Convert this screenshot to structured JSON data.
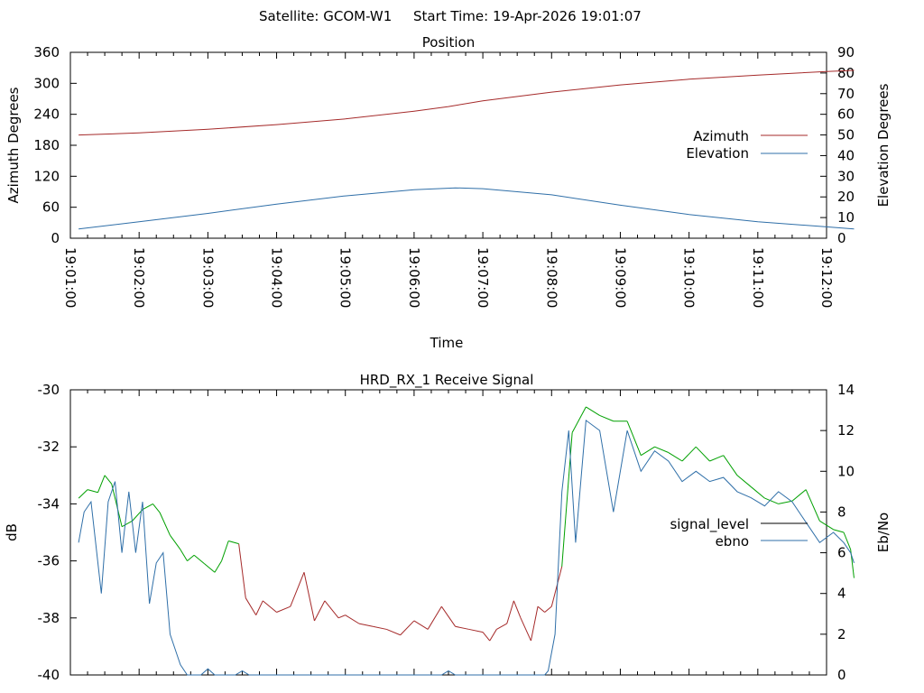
{
  "header": {
    "satellite": "Satellite: GCOM-W1",
    "start_time": "Start Time: 19-Apr-2026 19:01:07"
  },
  "chart_data": [
    {
      "type": "line",
      "title": "Position",
      "xlabel": "Time",
      "ylabel": "Azimuth Degrees",
      "y2label": "Elevation Degrees",
      "xlim_minutes": [
        0,
        11
      ],
      "x_tick_labels": [
        "19:01:00",
        "19:02:00",
        "19:03:00",
        "19:04:00",
        "19:05:00",
        "19:06:00",
        "19:07:00",
        "19:08:00",
        "19:09:00",
        "19:10:00",
        "19:11:00",
        "19:12:00"
      ],
      "ylim": [
        0,
        360
      ],
      "y_ticks": [
        0,
        60,
        120,
        180,
        240,
        300,
        360
      ],
      "y2lim": [
        0,
        90
      ],
      "y2_ticks": [
        0,
        10,
        20,
        30,
        40,
        50,
        60,
        70,
        80,
        90
      ],
      "legend_position": "right",
      "series": [
        {
          "name": "Azimuth",
          "axis": "left",
          "color": "#a52a2a",
          "x": [
            0.12,
            1,
            2,
            3,
            4,
            5,
            5.5,
            6,
            7,
            8,
            9,
            10,
            11,
            11.4
          ],
          "y": [
            200,
            204,
            211,
            220,
            231,
            246,
            255,
            266,
            283,
            297,
            308,
            316,
            323,
            325
          ]
        },
        {
          "name": "Elevation",
          "axis": "right",
          "color": "#2f6fa8",
          "x": [
            0.12,
            1,
            2,
            3,
            4,
            5,
            5.6,
            6,
            7,
            8,
            9,
            10,
            11,
            11.4
          ],
          "y": [
            4.5,
            8,
            12,
            16.5,
            20.5,
            23.5,
            24.4,
            24,
            21,
            16,
            11.5,
            8,
            5.5,
            4.5
          ]
        }
      ]
    },
    {
      "type": "line",
      "title": "HRD_RX_1 Receive Signal",
      "ylabel": "dB",
      "y2label": "Eb/No",
      "xlim_minutes": [
        0,
        11
      ],
      "ylim": [
        -40,
        -30
      ],
      "y_ticks": [
        -40,
        -38,
        -36,
        -34,
        -32,
        -30
      ],
      "y2lim": [
        0,
        14
      ],
      "y2_ticks": [
        0,
        2,
        4,
        6,
        8,
        10,
        12,
        14
      ],
      "legend_position": "right",
      "series": [
        {
          "name": "signal_level",
          "axis": "left",
          "color": "#00a000",
          "color_low": "#a52a2a",
          "low_threshold": -36.3,
          "x": [
            0.12,
            0.25,
            0.4,
            0.5,
            0.6,
            0.75,
            0.9,
            1.05,
            1.2,
            1.3,
            1.45,
            1.6,
            1.7,
            1.8,
            1.95,
            2.1,
            2.2,
            2.3,
            2.45,
            2.55,
            2.7,
            2.8,
            3.0,
            3.2,
            3.4,
            3.55,
            3.7,
            3.9,
            4.0,
            4.2,
            4.4,
            4.6,
            4.8,
            5.0,
            5.2,
            5.4,
            5.6,
            5.8,
            6.0,
            6.1,
            6.2,
            6.35,
            6.45,
            6.55,
            6.7,
            6.8,
            6.9,
            7.0,
            7.15,
            7.3,
            7.5,
            7.7,
            7.9,
            8.1,
            8.3,
            8.5,
            8.7,
            8.9,
            9.1,
            9.3,
            9.5,
            9.7,
            9.9,
            10.1,
            10.3,
            10.5,
            10.7,
            10.9,
            11.1,
            11.25,
            11.35,
            11.4
          ],
          "y": [
            -33.8,
            -33.5,
            -33.6,
            -33.0,
            -33.3,
            -34.8,
            -34.6,
            -34.2,
            -34.0,
            -34.3,
            -35.1,
            -35.6,
            -36.0,
            -35.8,
            -36.1,
            -36.4,
            -36.0,
            -35.3,
            -35.4,
            -37.3,
            -37.9,
            -37.4,
            -37.8,
            -37.6,
            -36.4,
            -38.1,
            -37.4,
            -38.0,
            -37.9,
            -38.2,
            -38.3,
            -38.4,
            -38.6,
            -38.1,
            -38.4,
            -37.6,
            -38.3,
            -38.4,
            -38.5,
            -38.8,
            -38.4,
            -38.2,
            -37.4,
            -38.0,
            -38.8,
            -37.6,
            -37.8,
            -37.6,
            -36.2,
            -31.5,
            -30.6,
            -30.9,
            -31.1,
            -31.1,
            -32.3,
            -32.0,
            -32.2,
            -32.5,
            -32.0,
            -32.5,
            -32.3,
            -33.0,
            -33.4,
            -33.8,
            -34.0,
            -33.9,
            -33.5,
            -34.6,
            -34.9,
            -35.0,
            -35.6,
            -36.6
          ]
        },
        {
          "name": "ebno",
          "axis": "right",
          "color": "#2f6fa8",
          "x": [
            0.12,
            0.2,
            0.3,
            0.45,
            0.55,
            0.65,
            0.75,
            0.85,
            0.95,
            1.05,
            1.15,
            1.25,
            1.35,
            1.45,
            1.55,
            1.6,
            1.7,
            1.8,
            1.9,
            2.0,
            2.1,
            2.2,
            2.3,
            2.4,
            2.5,
            2.6,
            2.7,
            2.8,
            2.9,
            3.0,
            3.1,
            3.2,
            3.3,
            3.4,
            3.5,
            3.6,
            3.7,
            3.8,
            3.9,
            4.0,
            4.1,
            4.2,
            4.3,
            4.4,
            4.5,
            4.6,
            4.7,
            4.8,
            4.9,
            5.0,
            5.1,
            5.2,
            5.3,
            5.4,
            5.5,
            5.6,
            5.7,
            5.8,
            5.9,
            6.0,
            6.1,
            6.2,
            6.3,
            6.4,
            6.5,
            6.6,
            6.7,
            6.8,
            6.9,
            6.95,
            7.05,
            7.15,
            7.25,
            7.35,
            7.5,
            7.7,
            7.9,
            8.1,
            8.3,
            8.5,
            8.7,
            8.9,
            9.1,
            9.3,
            9.5,
            9.7,
            9.9,
            10.1,
            10.3,
            10.5,
            10.7,
            10.9,
            11.1,
            11.25,
            11.35,
            11.4
          ],
          "y": [
            6.5,
            8,
            8.5,
            4,
            8.5,
            9.5,
            6,
            9,
            6,
            8.5,
            3.5,
            5.5,
            6,
            2,
            1,
            0.5,
            0,
            0,
            0,
            0.3,
            0,
            0,
            0,
            0,
            0.2,
            0,
            0,
            0,
            0,
            0,
            0,
            0,
            0,
            0,
            0,
            0,
            0,
            0,
            0,
            0,
            0,
            0,
            0,
            0,
            0,
            0,
            0,
            0,
            0,
            0,
            0,
            0,
            0,
            0,
            0.2,
            0,
            0,
            0,
            0,
            0,
            0,
            0,
            0,
            0,
            0,
            0,
            0,
            0,
            0,
            0.2,
            2,
            9,
            12,
            6.5,
            12.5,
            12,
            8,
            12,
            10,
            11,
            10.5,
            9.5,
            10,
            9.5,
            9.7,
            9,
            8.7,
            8.3,
            9,
            8.5,
            7.5,
            6.5,
            7,
            6.5,
            6,
            5.5
          ]
        }
      ]
    }
  ]
}
